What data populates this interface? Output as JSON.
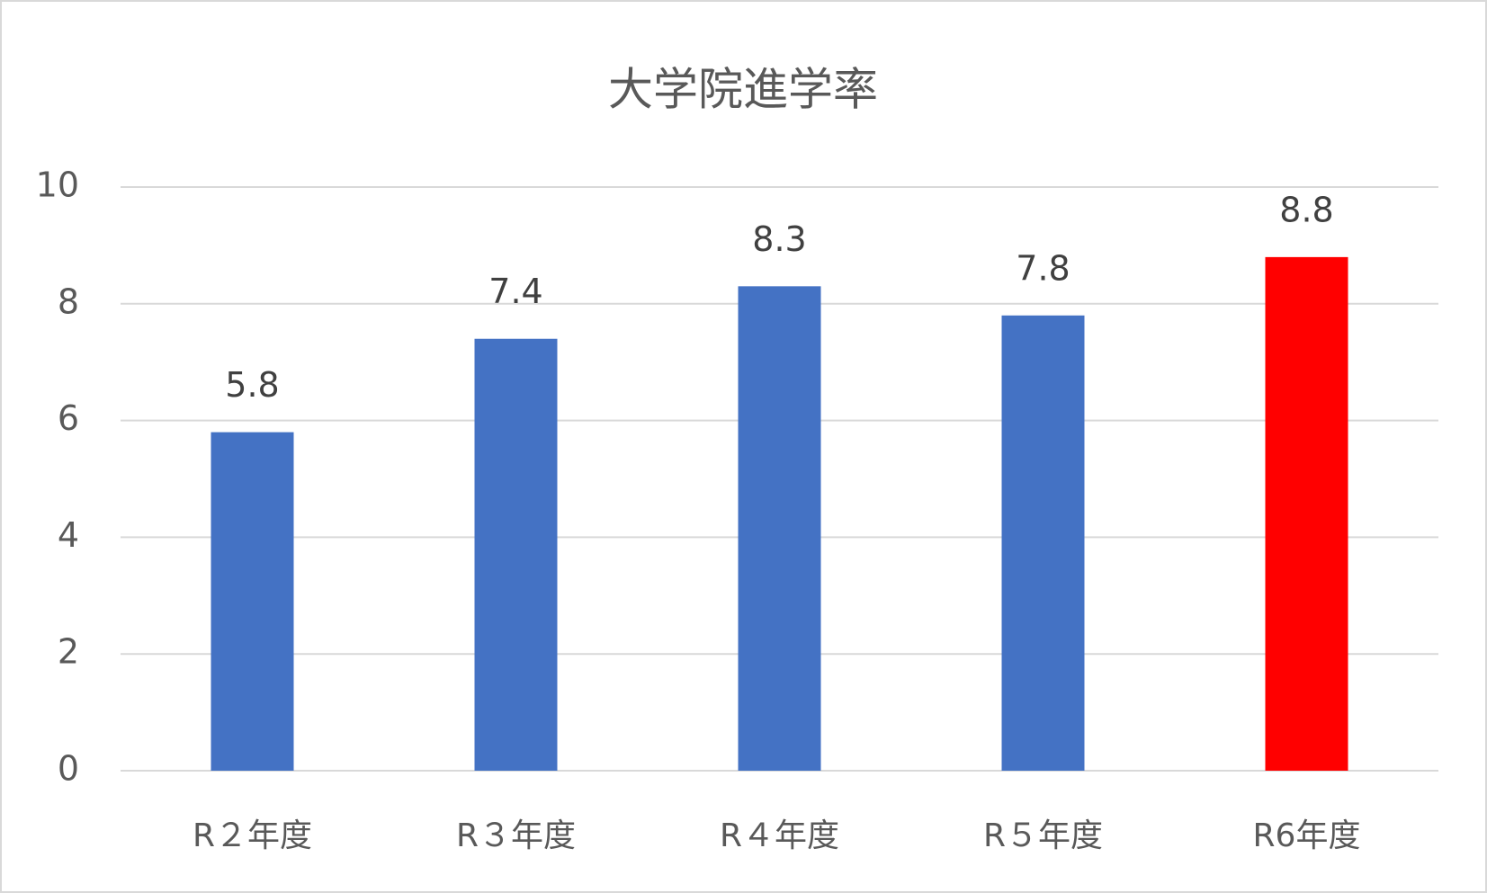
{
  "chart_data": {
    "type": "bar",
    "title": "大学院進学率",
    "categories": [
      "R２年度",
      "R３年度",
      "R４年度",
      "R５年度",
      "R6年度"
    ],
    "values": [
      5.8,
      7.4,
      8.3,
      7.8,
      8.8
    ],
    "colors": [
      "#4472c4",
      "#4472c4",
      "#4472c4",
      "#4472c4",
      "#ff0000"
    ],
    "ylim": [
      0,
      10
    ],
    "yticks": [
      0,
      2,
      4,
      6,
      8,
      10
    ],
    "grid": true
  }
}
